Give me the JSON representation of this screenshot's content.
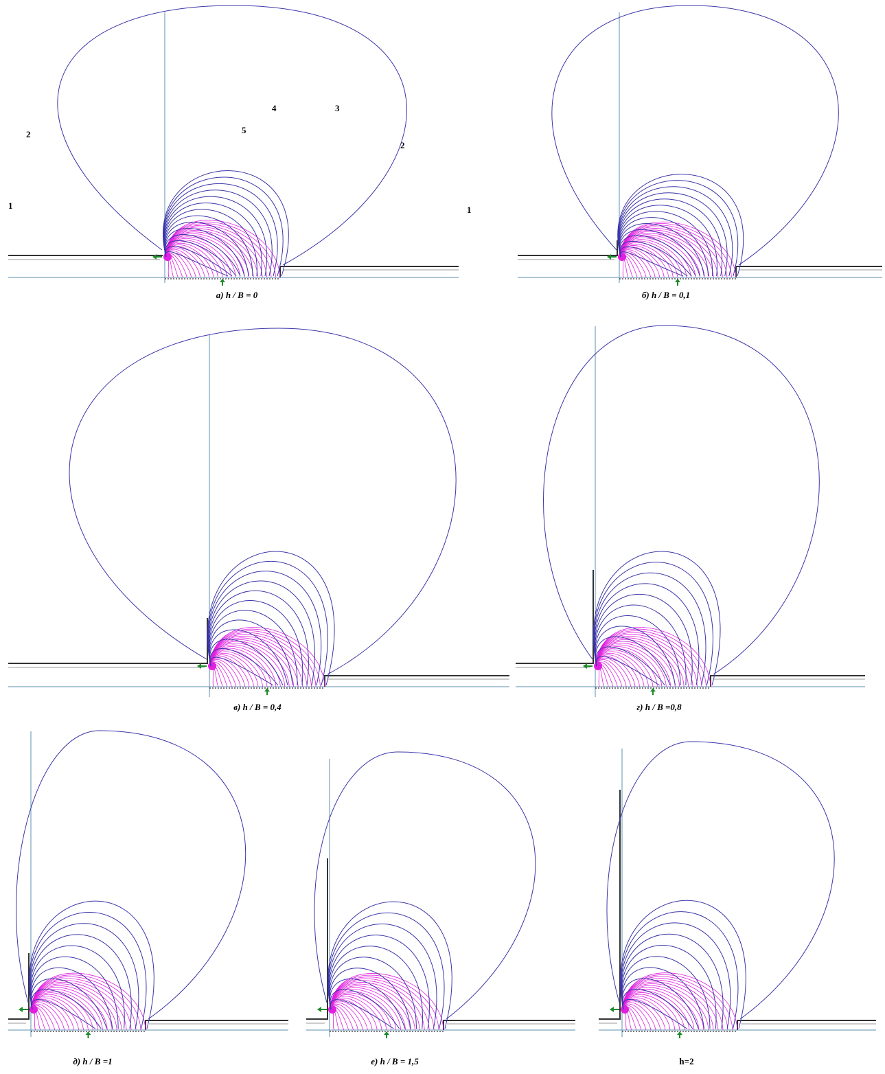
{
  "colors": {
    "outer_lines": "#3a35a8",
    "inner_lines": "#e020e0",
    "axis": "#5b8fb0",
    "wall": "#333333",
    "arrow": "#1d8a2a",
    "text": "#000000"
  },
  "panels": [
    {
      "id": "a",
      "caption": "a) h / B = 0",
      "h_over_B": 0,
      "line_labels": [
        "1",
        "2",
        "3",
        "4",
        "5",
        "2",
        "1"
      ]
    },
    {
      "id": "b",
      "caption": "б) h / B = 0,1",
      "h_over_B": 0.1,
      "line_labels": []
    },
    {
      "id": "v",
      "caption": "в) h / B = 0,4",
      "h_over_B": 0.4,
      "line_labels": []
    },
    {
      "id": "g",
      "caption": "г) h / B =0,8",
      "h_over_B": 0.8,
      "line_labels": []
    },
    {
      "id": "d",
      "caption": "д) h / B =1",
      "h_over_B": 1,
      "line_labels": []
    },
    {
      "id": "e",
      "caption": "е) h / B = 1,5",
      "h_over_B": 1.5,
      "line_labels": []
    },
    {
      "id": "h",
      "caption": "h=2",
      "h_over_B": 2,
      "line_labels": []
    }
  ]
}
